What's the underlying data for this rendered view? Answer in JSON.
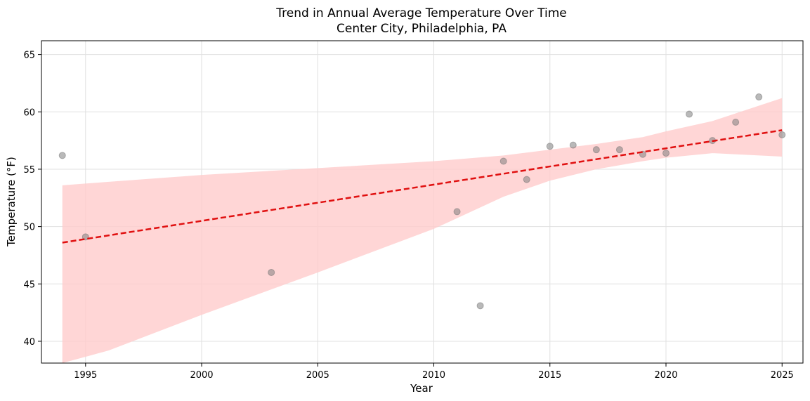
{
  "chart_data": {
    "type": "scatter",
    "title": "Trend in Annual Average Temperature Over Time",
    "subtitle": "Center City, Philadelphia, PA",
    "xlabel": "Year",
    "ylabel": "Temperature (°F)",
    "xlim": [
      1993.1,
      2025.9
    ],
    "ylim": [
      38.1,
      66.2
    ],
    "xticks": [
      1995,
      2000,
      2005,
      2010,
      2015,
      2020,
      2025
    ],
    "yticks": [
      40,
      45,
      50,
      55,
      60,
      65
    ],
    "grid": true,
    "points": [
      {
        "x": 1994,
        "y": 56.2
      },
      {
        "x": 1995,
        "y": 49.1
      },
      {
        "x": 2003,
        "y": 46.0
      },
      {
        "x": 2011,
        "y": 51.3
      },
      {
        "x": 2012,
        "y": 43.1
      },
      {
        "x": 2013,
        "y": 55.7
      },
      {
        "x": 2014,
        "y": 54.1
      },
      {
        "x": 2015,
        "y": 57.0
      },
      {
        "x": 2016,
        "y": 57.1
      },
      {
        "x": 2017,
        "y": 56.7
      },
      {
        "x": 2018,
        "y": 56.7
      },
      {
        "x": 2019,
        "y": 56.3
      },
      {
        "x": 2020,
        "y": 56.4
      },
      {
        "x": 2021,
        "y": 59.8
      },
      {
        "x": 2022,
        "y": 57.5
      },
      {
        "x": 2023,
        "y": 59.1
      },
      {
        "x": 2024,
        "y": 61.3
      },
      {
        "x": 2025,
        "y": 58.0
      }
    ],
    "trend_line": {
      "x": [
        1994,
        2025
      ],
      "y": [
        48.6,
        58.4
      ]
    },
    "confidence_band": {
      "x": [
        1994,
        1996,
        2000,
        2005,
        2010,
        2013,
        2015,
        2017,
        2019,
        2020,
        2022,
        2025
      ],
      "upper": [
        53.6,
        53.9,
        54.5,
        55.1,
        55.7,
        56.2,
        56.7,
        57.2,
        57.8,
        58.3,
        59.2,
        61.2
      ],
      "lower": [
        38.1,
        39.2,
        42.3,
        46.0,
        49.8,
        52.6,
        54.0,
        55.0,
        55.7,
        56.0,
        56.4,
        56.1
      ]
    },
    "colors": {
      "points": "#808080",
      "trend": "#e01010",
      "band": "#ffcccc",
      "grid": "#e0e0e0"
    }
  }
}
